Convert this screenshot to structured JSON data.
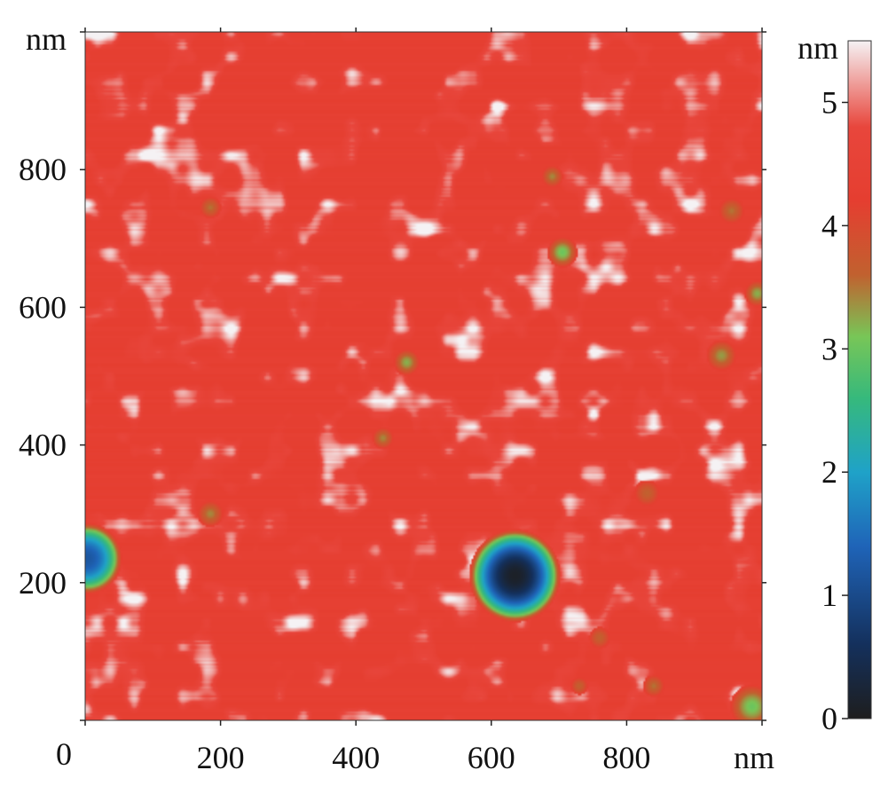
{
  "chart_data": {
    "type": "heatmap",
    "title": "",
    "xlabel": "",
    "ylabel": "",
    "x_unit": "nm",
    "y_unit": "nm",
    "xlim": [
      0,
      1000
    ],
    "ylim": [
      0,
      1000
    ],
    "x_ticks": [
      200,
      400,
      600,
      800
    ],
    "y_ticks": [
      200,
      400,
      600,
      800
    ],
    "origin_label": "0",
    "colorbar": {
      "unit": "nm",
      "range": [
        0,
        5.5
      ],
      "ticks": [
        0,
        1,
        2,
        3,
        4,
        5
      ],
      "colors": [
        {
          "value": 0.0,
          "color": "#1e1e1e"
        },
        {
          "value": 0.6,
          "color": "#14305c"
        },
        {
          "value": 1.4,
          "color": "#1f64b8"
        },
        {
          "value": 2.0,
          "color": "#1fa2c8"
        },
        {
          "value": 2.6,
          "color": "#36b97c"
        },
        {
          "value": 3.1,
          "color": "#78c657"
        },
        {
          "value": 3.6,
          "color": "#c1612f"
        },
        {
          "value": 4.2,
          "color": "#e53e30"
        },
        {
          "value": 4.8,
          "color": "#e8463c"
        },
        {
          "value": 5.5,
          "color": "#f5f2f4"
        }
      ]
    },
    "background_height": 4.3,
    "features": [
      {
        "kind": "pit",
        "x": 635,
        "y": 210,
        "radius": 50,
        "depth": 0.1
      },
      {
        "kind": "pit",
        "x": 3,
        "y": 235,
        "radius": 38,
        "depth": 1.2
      },
      {
        "kind": "spot",
        "x": 705,
        "y": 680,
        "radius": 14,
        "height": 3.0
      },
      {
        "kind": "spot",
        "x": 475,
        "y": 520,
        "radius": 12,
        "height": 3.2
      },
      {
        "kind": "spot",
        "x": 985,
        "y": 20,
        "radius": 20,
        "height": 3.0
      },
      {
        "kind": "spot",
        "x": 993,
        "y": 620,
        "radius": 12,
        "height": 3.2
      },
      {
        "kind": "spot",
        "x": 940,
        "y": 530,
        "radius": 14,
        "height": 3.3
      },
      {
        "kind": "spot",
        "x": 955,
        "y": 740,
        "radius": 12,
        "height": 3.5
      },
      {
        "kind": "spot",
        "x": 690,
        "y": 790,
        "radius": 10,
        "height": 3.4
      },
      {
        "kind": "spot",
        "x": 185,
        "y": 745,
        "radius": 10,
        "height": 3.5
      },
      {
        "kind": "spot",
        "x": 185,
        "y": 300,
        "radius": 12,
        "height": 3.4
      },
      {
        "kind": "spot",
        "x": 440,
        "y": 410,
        "radius": 10,
        "height": 3.4
      },
      {
        "kind": "spot",
        "x": 830,
        "y": 330,
        "radius": 12,
        "height": 3.6
      },
      {
        "kind": "spot",
        "x": 760,
        "y": 120,
        "radius": 10,
        "height": 3.6
      },
      {
        "kind": "spot",
        "x": 840,
        "y": 50,
        "radius": 10,
        "height": 3.5
      },
      {
        "kind": "spot",
        "x": 730,
        "y": 50,
        "radius": 8,
        "height": 3.6
      }
    ]
  }
}
